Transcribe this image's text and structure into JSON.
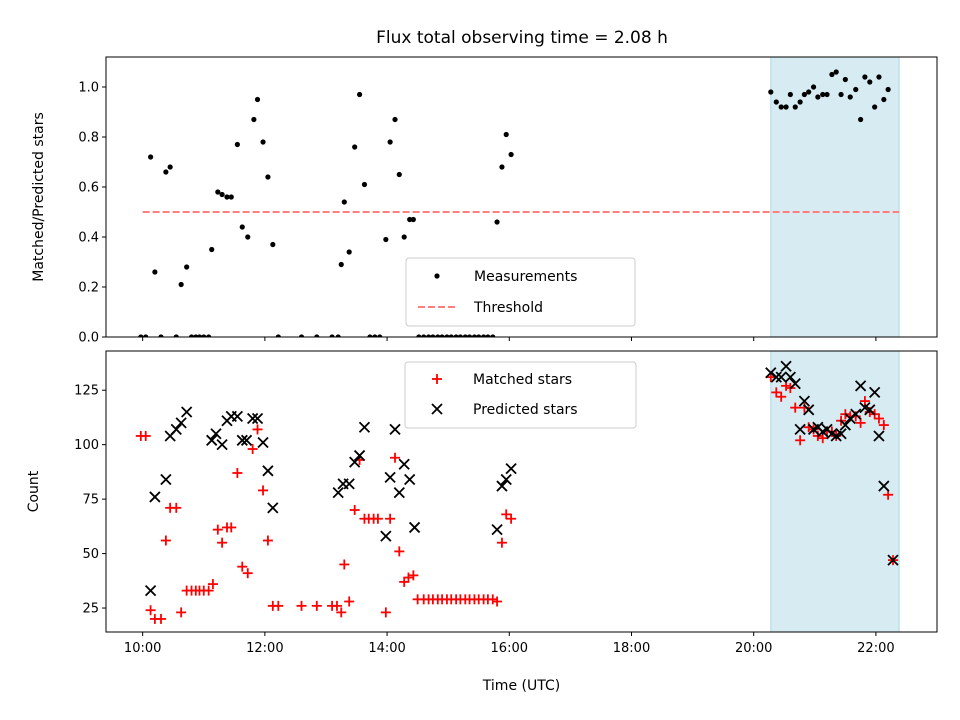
{
  "title": "Flux total observing time = 2.08 h",
  "colors": {
    "measurement": "#000000",
    "threshold": "#ff7f7f",
    "matched": "#ff0000",
    "predicted": "#000000",
    "span": "#add8e6"
  },
  "chart_data": [
    {
      "type": "scatter",
      "ylabel": "Matched/Predicted stars",
      "xlim": [
        9.4,
        23.0
      ],
      "ylim": [
        0,
        1.12
      ],
      "yticks": [
        0.0,
        0.2,
        0.4,
        0.6,
        0.8,
        1.0
      ],
      "ytick_labels": [
        "0.0",
        "0.2",
        "0.4",
        "0.6",
        "0.8",
        "1.0"
      ],
      "xticks": [
        10,
        12,
        14,
        16,
        18,
        20,
        22
      ],
      "shaded_span": [
        20.28,
        22.38
      ],
      "threshold": {
        "name": "Threshold",
        "y": 0.5,
        "x_range": [
          10.0,
          22.38
        ],
        "style": "dashed"
      },
      "legend": {
        "placement": "lower center",
        "entries": [
          "Measurements",
          "Threshold"
        ]
      },
      "series": [
        {
          "name": "Measurements",
          "marker": "dot",
          "points": [
            [
              9.97,
              0
            ],
            [
              10.05,
              0
            ],
            [
              10.13,
              0.72
            ],
            [
              10.2,
              0.26
            ],
            [
              10.3,
              0
            ],
            [
              10.38,
              0.66
            ],
            [
              10.45,
              0.68
            ],
            [
              10.55,
              0
            ],
            [
              10.63,
              0.21
            ],
            [
              10.72,
              0.28
            ],
            [
              10.8,
              0
            ],
            [
              10.87,
              0
            ],
            [
              10.93,
              0
            ],
            [
              11.0,
              0
            ],
            [
              11.08,
              0
            ],
            [
              11.13,
              0.35
            ],
            [
              11.23,
              0.58
            ],
            [
              11.3,
              0.57
            ],
            [
              11.38,
              0.56
            ],
            [
              11.45,
              0.56
            ],
            [
              11.55,
              0.77
            ],
            [
              11.63,
              0.44
            ],
            [
              11.72,
              0.4
            ],
            [
              11.82,
              0.87
            ],
            [
              11.88,
              0.95
            ],
            [
              11.97,
              0.78
            ],
            [
              12.05,
              0.64
            ],
            [
              12.13,
              0.37
            ],
            [
              12.22,
              0
            ],
            [
              12.6,
              0
            ],
            [
              12.85,
              0
            ],
            [
              13.1,
              0
            ],
            [
              13.2,
              0
            ],
            [
              13.25,
              0.29
            ],
            [
              13.3,
              0.54
            ],
            [
              13.38,
              0.34
            ],
            [
              13.47,
              0.76
            ],
            [
              13.55,
              0.97
            ],
            [
              13.63,
              0.61
            ],
            [
              13.72,
              0
            ],
            [
              13.8,
              0
            ],
            [
              13.88,
              0
            ],
            [
              13.98,
              0.39
            ],
            [
              14.05,
              0.78
            ],
            [
              14.13,
              0.87
            ],
            [
              14.2,
              0.65
            ],
            [
              14.28,
              0.4
            ],
            [
              14.37,
              0.47
            ],
            [
              14.43,
              0.47
            ],
            [
              14.52,
              0
            ],
            [
              14.6,
              0
            ],
            [
              14.68,
              0
            ],
            [
              14.75,
              0
            ],
            [
              14.83,
              0
            ],
            [
              14.9,
              0
            ],
            [
              14.98,
              0
            ],
            [
              15.05,
              0
            ],
            [
              15.13,
              0
            ],
            [
              15.2,
              0
            ],
            [
              15.28,
              0
            ],
            [
              15.35,
              0
            ],
            [
              15.43,
              0
            ],
            [
              15.5,
              0
            ],
            [
              15.58,
              0
            ],
            [
              15.65,
              0
            ],
            [
              15.73,
              0
            ],
            [
              15.8,
              0.46
            ],
            [
              15.88,
              0.68
            ],
            [
              15.95,
              0.81
            ],
            [
              16.03,
              0.73
            ],
            [
              20.28,
              0.98
            ],
            [
              20.37,
              0.94
            ],
            [
              20.45,
              0.92
            ],
            [
              20.53,
              0.92
            ],
            [
              20.6,
              0.97
            ],
            [
              20.68,
              0.92
            ],
            [
              20.76,
              0.94
            ],
            [
              20.83,
              0.97
            ],
            [
              20.9,
              0.98
            ],
            [
              20.98,
              1.0
            ],
            [
              21.05,
              0.96
            ],
            [
              21.13,
              0.97
            ],
            [
              21.2,
              0.97
            ],
            [
              21.28,
              1.05
            ],
            [
              21.35,
              1.06
            ],
            [
              21.43,
              0.97
            ],
            [
              21.5,
              1.03
            ],
            [
              21.58,
              0.96
            ],
            [
              21.67,
              0.99
            ],
            [
              21.75,
              0.87
            ],
            [
              21.82,
              1.04
            ],
            [
              21.9,
              1.02
            ],
            [
              21.98,
              0.92
            ],
            [
              22.05,
              1.04
            ],
            [
              22.13,
              0.95
            ],
            [
              22.2,
              0.99
            ]
          ]
        }
      ]
    },
    {
      "type": "scatter",
      "xlabel": "Time (UTC)",
      "ylabel": "Count",
      "xlim": [
        9.4,
        23.0
      ],
      "ylim": [
        14,
        143
      ],
      "yticks": [
        25,
        50,
        75,
        100,
        125
      ],
      "ytick_labels": [
        "25",
        "50",
        "75",
        "100",
        "125"
      ],
      "xticks": [
        10,
        12,
        14,
        16,
        18,
        20,
        22
      ],
      "xtick_labels": [
        "10:00",
        "12:00",
        "14:00",
        "16:00",
        "18:00",
        "20:00",
        "22:00"
      ],
      "shaded_span": [
        20.28,
        22.38
      ],
      "legend": {
        "placement": "upper center",
        "entries": [
          "Matched stars",
          "Predicted stars"
        ]
      },
      "series": [
        {
          "name": "Matched stars",
          "marker": "plus",
          "points": [
            [
              9.97,
              104
            ],
            [
              10.05,
              104
            ],
            [
              10.13,
              24
            ],
            [
              10.2,
              20
            ],
            [
              10.3,
              20
            ],
            [
              10.38,
              56
            ],
            [
              10.45,
              71
            ],
            [
              10.55,
              71
            ],
            [
              10.63,
              23
            ],
            [
              10.72,
              33
            ],
            [
              10.8,
              33
            ],
            [
              10.87,
              33
            ],
            [
              10.93,
              33
            ],
            [
              11.0,
              33
            ],
            [
              11.08,
              33
            ],
            [
              11.15,
              36
            ],
            [
              11.23,
              61
            ],
            [
              11.3,
              55
            ],
            [
              11.38,
              62
            ],
            [
              11.45,
              62
            ],
            [
              11.55,
              87
            ],
            [
              11.63,
              44
            ],
            [
              11.72,
              41
            ],
            [
              11.8,
              98
            ],
            [
              11.88,
              107
            ],
            [
              11.97,
              79
            ],
            [
              12.05,
              56
            ],
            [
              12.13,
              26
            ],
            [
              12.22,
              26
            ],
            [
              12.6,
              26
            ],
            [
              12.85,
              26
            ],
            [
              13.1,
              26
            ],
            [
              13.18,
              26
            ],
            [
              13.25,
              23
            ],
            [
              13.3,
              45
            ],
            [
              13.38,
              28
            ],
            [
              13.47,
              70
            ],
            [
              13.55,
              93
            ],
            [
              13.63,
              66
            ],
            [
              13.7,
              66
            ],
            [
              13.78,
              66
            ],
            [
              13.85,
              66
            ],
            [
              13.98,
              23
            ],
            [
              14.05,
              66
            ],
            [
              14.13,
              94
            ],
            [
              14.2,
              51
            ],
            [
              14.28,
              37
            ],
            [
              14.35,
              39
            ],
            [
              14.43,
              40
            ],
            [
              14.5,
              29
            ],
            [
              14.6,
              29
            ],
            [
              14.68,
              29
            ],
            [
              14.75,
              29
            ],
            [
              14.83,
              29
            ],
            [
              14.9,
              29
            ],
            [
              14.98,
              29
            ],
            [
              15.05,
              29
            ],
            [
              15.13,
              29
            ],
            [
              15.2,
              29
            ],
            [
              15.28,
              29
            ],
            [
              15.35,
              29
            ],
            [
              15.43,
              29
            ],
            [
              15.5,
              29
            ],
            [
              15.58,
              29
            ],
            [
              15.65,
              29
            ],
            [
              15.73,
              29
            ],
            [
              15.8,
              28
            ],
            [
              15.88,
              55
            ],
            [
              15.95,
              68
            ],
            [
              16.03,
              66
            ],
            [
              20.28,
              131
            ],
            [
              20.37,
              124
            ],
            [
              20.45,
              122
            ],
            [
              20.53,
              127
            ],
            [
              20.6,
              126
            ],
            [
              20.68,
              117
            ],
            [
              20.76,
              102
            ],
            [
              20.83,
              117
            ],
            [
              20.9,
              108
            ],
            [
              20.98,
              107
            ],
            [
              21.05,
              104
            ],
            [
              21.13,
              103
            ],
            [
              21.2,
              106
            ],
            [
              21.28,
              106
            ],
            [
              21.35,
              104
            ],
            [
              21.43,
              111
            ],
            [
              21.5,
              114
            ],
            [
              21.58,
              113
            ],
            [
              21.67,
              113
            ],
            [
              21.75,
              110
            ],
            [
              21.82,
              120
            ],
            [
              21.9,
              115
            ],
            [
              21.98,
              114
            ],
            [
              22.05,
              112
            ],
            [
              22.13,
              109
            ],
            [
              22.2,
              77
            ],
            [
              22.28,
              47
            ]
          ]
        },
        {
          "name": "Predicted stars",
          "marker": "x",
          "points": [
            [
              10.13,
              33
            ],
            [
              10.2,
              76
            ],
            [
              10.38,
              84
            ],
            [
              10.45,
              104
            ],
            [
              10.55,
              107
            ],
            [
              10.63,
              110
            ],
            [
              10.72,
              115
            ],
            [
              11.13,
              102
            ],
            [
              11.2,
              105
            ],
            [
              11.3,
              100
            ],
            [
              11.38,
              111
            ],
            [
              11.45,
              113
            ],
            [
              11.55,
              113
            ],
            [
              11.63,
              102
            ],
            [
              11.7,
              102
            ],
            [
              11.8,
              112
            ],
            [
              11.88,
              112
            ],
            [
              11.97,
              101
            ],
            [
              12.05,
              88
            ],
            [
              12.13,
              71
            ],
            [
              13.2,
              78
            ],
            [
              13.28,
              82
            ],
            [
              13.38,
              82
            ],
            [
              13.47,
              92
            ],
            [
              13.55,
              95
            ],
            [
              13.63,
              108
            ],
            [
              13.98,
              58
            ],
            [
              14.05,
              85
            ],
            [
              14.13,
              107
            ],
            [
              14.2,
              78
            ],
            [
              14.28,
              91
            ],
            [
              14.37,
              84
            ],
            [
              14.45,
              62
            ],
            [
              15.8,
              61
            ],
            [
              15.88,
              81
            ],
            [
              15.95,
              84
            ],
            [
              16.03,
              89
            ],
            [
              20.28,
              133
            ],
            [
              20.37,
              131
            ],
            [
              20.45,
              131
            ],
            [
              20.53,
              136
            ],
            [
              20.6,
              131
            ],
            [
              20.68,
              128
            ],
            [
              20.76,
              107
            ],
            [
              20.83,
              120
            ],
            [
              20.9,
              116
            ],
            [
              20.98,
              107
            ],
            [
              21.05,
              108
            ],
            [
              21.13,
              106
            ],
            [
              21.2,
              107
            ],
            [
              21.28,
              105
            ],
            [
              21.35,
              104
            ],
            [
              21.43,
              105
            ],
            [
              21.5,
              109
            ],
            [
              21.58,
              112
            ],
            [
              21.67,
              114
            ],
            [
              21.75,
              127
            ],
            [
              21.82,
              117
            ],
            [
              21.9,
              116
            ],
            [
              21.98,
              124
            ],
            [
              22.05,
              104
            ],
            [
              22.13,
              81
            ],
            [
              22.28,
              47
            ]
          ]
        }
      ]
    }
  ]
}
